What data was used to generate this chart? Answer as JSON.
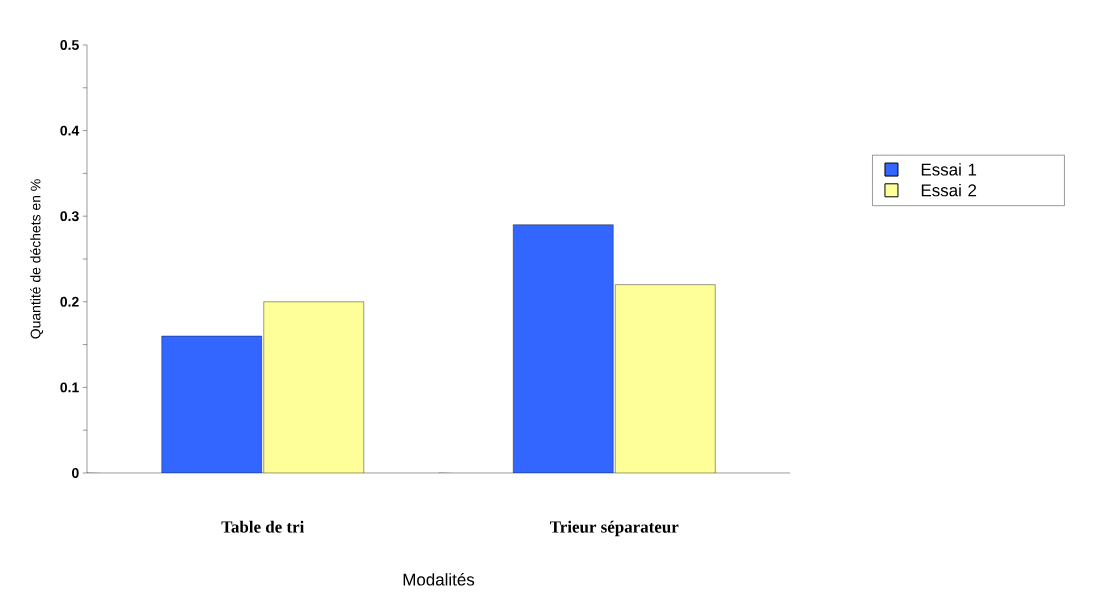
{
  "chart_data": {
    "type": "bar",
    "xlabel": "Modalités",
    "ylabel": "Quantité de  déchets en %",
    "categories": [
      "Table de tri",
      "Trieur séparateur"
    ],
    "series": [
      {
        "name": "Essai 1",
        "color": "#3366ff",
        "values": [
          0.16,
          0.29
        ]
      },
      {
        "name": "Essai 2",
        "color": "#ffff99",
        "values": [
          0.2,
          0.22
        ]
      }
    ],
    "ylim": [
      0,
      0.5
    ],
    "yticks": [
      0,
      {
        "value": 0.05,
        "label": null
      },
      0.1,
      {
        "value": 0.15,
        "label": null
      },
      0.2,
      {
        "value": 0.25,
        "label": null
      },
      0.3,
      {
        "value": 0.35,
        "label": null
      },
      0.4,
      {
        "value": 0.45,
        "label": null
      },
      0.5
    ],
    "legend": "right"
  }
}
